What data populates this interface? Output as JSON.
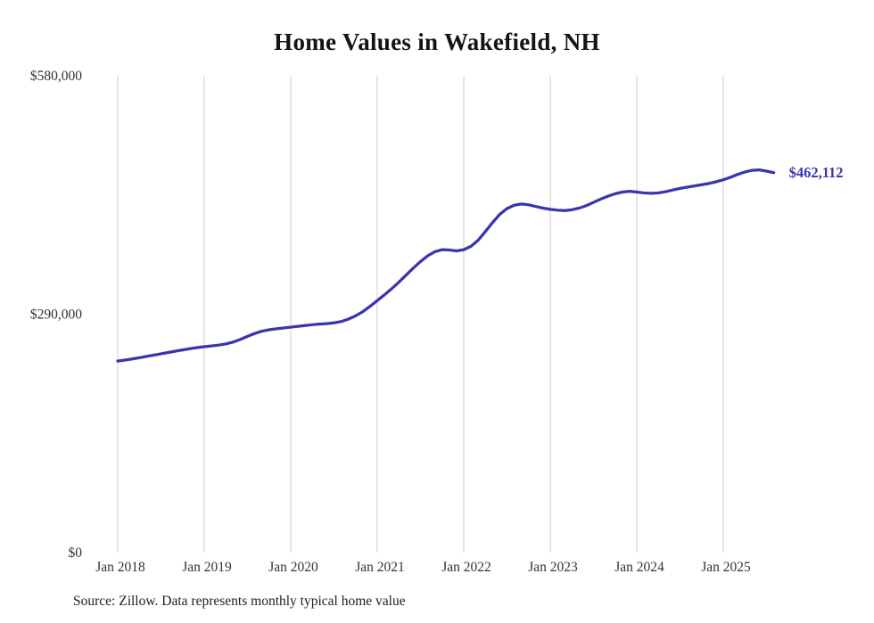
{
  "title": "Home Values in Wakefield, NH",
  "source": "Source: Zillow. Data represents monthly typical home value",
  "chart_data": {
    "type": "line",
    "title": "Home Values in Wakefield, NH",
    "xlabel": "",
    "ylabel": "",
    "x_start_month": "Jan 2018",
    "x_labels": [
      "Jan 2018",
      "Jan 2019",
      "Jan 2020",
      "Jan 2021",
      "Jan 2022",
      "Jan 2023",
      "Jan 2024",
      "Jan 2025"
    ],
    "y_ticks": [
      {
        "value": 0,
        "label": "$0"
      },
      {
        "value": 290000,
        "label": "$290,000"
      },
      {
        "value": 580000,
        "label": "$580,000"
      }
    ],
    "ylim": [
      0,
      580000
    ],
    "grid": "vertical-only",
    "line_color": "#3a35ad",
    "gridline_color": "#cccccc",
    "tick_label_color": "#333333",
    "end_label": "$462,112",
    "end_value": 462112,
    "series": [
      {
        "name": "Typical home value",
        "values": [
          233000,
          234200,
          235500,
          237000,
          238600,
          240200,
          241800,
          243400,
          245000,
          246500,
          248000,
          249300,
          250400,
          251400,
          252400,
          253800,
          256000,
          259200,
          263000,
          266500,
          269300,
          271000,
          272200,
          273200,
          274200,
          275200,
          276200,
          277200,
          277900,
          278500,
          279400,
          281000,
          284000,
          288000,
          293000,
          299500,
          306500,
          313500,
          321000,
          329000,
          337500,
          346000,
          354000,
          361000,
          366000,
          368500,
          368000,
          367000,
          368500,
          372500,
          380000,
          390500,
          401500,
          411500,
          418500,
          422500,
          424000,
          423000,
          421000,
          419000,
          417500,
          416500,
          416000,
          417000,
          419000,
          422000,
          426000,
          430000,
          433500,
          436500,
          438500,
          439500,
          438500,
          437500,
          437000,
          437500,
          439000,
          441000,
          443000,
          444500,
          446000,
          447500,
          449000,
          451000,
          453500,
          456500,
          460000,
          463000,
          465000,
          465500,
          464000,
          462112
        ]
      }
    ]
  }
}
